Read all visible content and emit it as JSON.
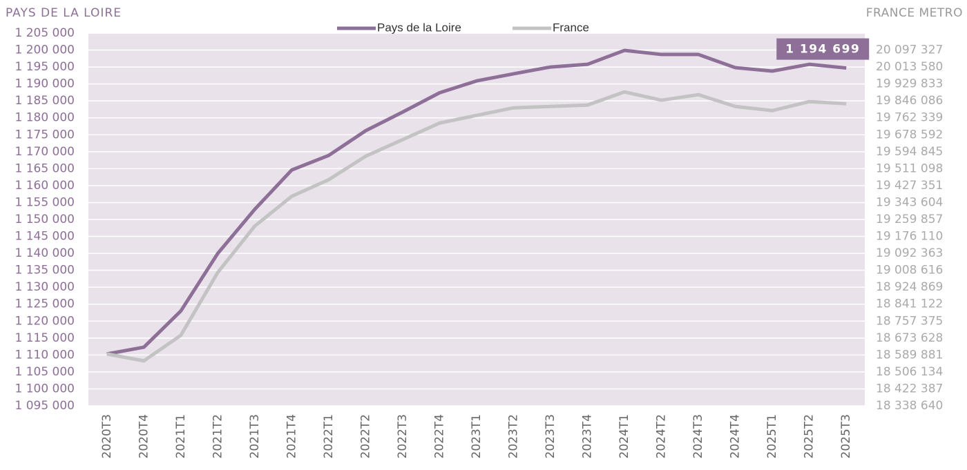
{
  "chart_data": {
    "type": "line",
    "ylabel": "PAYS DE LA LOIRE",
    "y2label": "FRANCE METRO",
    "categories": [
      "2020T3",
      "2020T4",
      "2021T1",
      "2021T2",
      "2021T3",
      "2021T4",
      "2022T1",
      "2022T2",
      "2022T3",
      "2022T4",
      "2023T1",
      "2023T2",
      "2023T3",
      "2023T4",
      "2024T1",
      "2024T2",
      "2024T3",
      "2024T4",
      "2025T1",
      "2025T2",
      "2025T3"
    ],
    "series": [
      {
        "name": "Pays de la Loire",
        "color": "#8e6f98",
        "values": [
          1110300,
          1112300,
          1123000,
          1140000,
          1153000,
          1164600,
          1168900,
          1176200,
          1181700,
          1187400,
          1190900,
          1193000,
          1195000,
          1195800,
          1199900,
          1198700,
          1198700,
          1194800,
          1193800,
          1195800,
          1194699
        ],
        "value_labels": [
          null,
          null,
          null,
          null,
          null,
          null,
          null,
          null,
          null,
          null,
          null,
          null,
          null,
          null,
          null,
          null,
          null,
          null,
          null,
          null,
          "1 194 699"
        ]
      },
      {
        "name": "France",
        "color": "#c3c3c3",
        "axis": "y2",
        "values": [
          18595000,
          18560800,
          18687300,
          18998300,
          19227400,
          19374300,
          19456400,
          19572600,
          19654600,
          19736700,
          19774300,
          19811900,
          19818700,
          19825500,
          19890500,
          19849500,
          19876800,
          19818700,
          19798200,
          19842600,
          19832400
        ]
      }
    ],
    "ylim": [
      1095000,
      1205000
    ],
    "yticks": [
      {
        "value": 1095000,
        "label": "1 095 000"
      },
      {
        "value": 1100000,
        "label": "1 100 000"
      },
      {
        "value": 1105000,
        "label": "1 105 000"
      },
      {
        "value": 1110000,
        "label": "1 110 000"
      },
      {
        "value": 1115000,
        "label": "1 115 000"
      },
      {
        "value": 1120000,
        "label": "1 120 000"
      },
      {
        "value": 1125000,
        "label": "1 125 000"
      },
      {
        "value": 1130000,
        "label": "1 130 000"
      },
      {
        "value": 1135000,
        "label": "1 135 000"
      },
      {
        "value": 1140000,
        "label": "1 140 000"
      },
      {
        "value": 1145000,
        "label": "1 145 000"
      },
      {
        "value": 1150000,
        "label": "1 150 000"
      },
      {
        "value": 1155000,
        "label": "1 155 000"
      },
      {
        "value": 1160000,
        "label": "1 160 000"
      },
      {
        "value": 1165000,
        "label": "1 165 000"
      },
      {
        "value": 1170000,
        "label": "1 170 000"
      },
      {
        "value": 1175000,
        "label": "1 175 000"
      },
      {
        "value": 1180000,
        "label": "1 180 000"
      },
      {
        "value": 1185000,
        "label": "1 185 000"
      },
      {
        "value": 1190000,
        "label": "1 190 000"
      },
      {
        "value": 1195000,
        "label": "1 195 000"
      },
      {
        "value": 1200000,
        "label": "1 200 000"
      },
      {
        "value": 1205000,
        "label": "1 205 000"
      }
    ],
    "y2lim": [
      18338640,
      20181074
    ],
    "y2ticks": [
      {
        "value": 18338640,
        "label": "18 338 640"
      },
      {
        "value": 18422387,
        "label": "18 422 387"
      },
      {
        "value": 18506134,
        "label": "18 506 134"
      },
      {
        "value": 18589881,
        "label": "18 589 881"
      },
      {
        "value": 18673628,
        "label": "18 673 628"
      },
      {
        "value": 18757375,
        "label": "18 757 375"
      },
      {
        "value": 18841122,
        "label": "18 841 122"
      },
      {
        "value": 18924869,
        "label": "18 924 869"
      },
      {
        "value": 19008616,
        "label": "19 008 616"
      },
      {
        "value": 19092363,
        "label": "19 092 363"
      },
      {
        "value": 19176110,
        "label": "19 176 110"
      },
      {
        "value": 19259857,
        "label": "19 259 857"
      },
      {
        "value": 19343604,
        "label": "19 343 604"
      },
      {
        "value": 19427351,
        "label": "19 427 351"
      },
      {
        "value": 19511098,
        "label": "19 511 098"
      },
      {
        "value": 19594845,
        "label": "19 594 845"
      },
      {
        "value": 19678592,
        "label": "19 678 592"
      },
      {
        "value": 19762339,
        "label": "19 762 339"
      },
      {
        "value": 19846086,
        "label": "19 846 086"
      },
      {
        "value": 19929833,
        "label": "19 929 833"
      },
      {
        "value": 20013580,
        "label": "20 013 580"
      },
      {
        "value": 20097327,
        "label": "20 097 327"
      }
    ],
    "grid": true,
    "legend": "top"
  }
}
